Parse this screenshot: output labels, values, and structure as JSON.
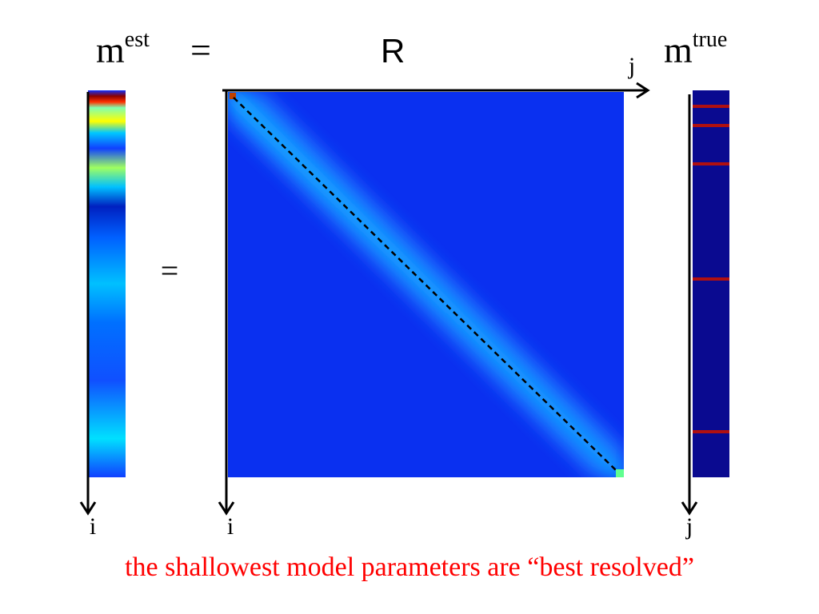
{
  "equation": {
    "lhs": {
      "symbol": "m",
      "superscript": "est"
    },
    "equals": "=",
    "matrix": "R",
    "rhs": {
      "symbol": "m",
      "superscript": "true"
    }
  },
  "axes": {
    "matrix_column": "j",
    "est_index": "i",
    "matrix_row": "i",
    "true_index": "j"
  },
  "middle_equals": "=",
  "caption": "the shallowest model parameters are “best resolved”"
}
